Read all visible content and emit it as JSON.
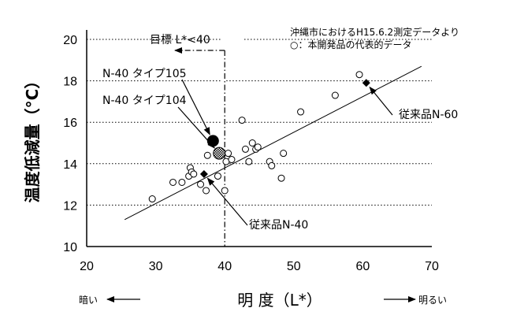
{
  "chart_data": {
    "type": "scatter",
    "ylabel": "温度低減量（°C）",
    "xlabel": "明 度（L*）",
    "x_left_hint": "暗い",
    "x_right_hint": "明るい",
    "source_note": "沖縄市におけるH15.6.2測定データより",
    "legend_note": "○：本開発品の代表的データ",
    "target_label": "目標 L*<40",
    "target_x": 40,
    "xlim": [
      20,
      70
    ],
    "ylim": [
      10,
      20
    ],
    "x_ticks": [
      20,
      30,
      40,
      50,
      60,
      70
    ],
    "y_ticks": [
      10,
      12,
      14,
      16,
      18,
      20
    ],
    "grid": "dotted horizontal at 12,14,16,18,20 (right part)",
    "trend_line": {
      "x": [
        25.5,
        68.5
      ],
      "y": [
        11.3,
        18.7
      ]
    },
    "series": [
      {
        "name": "本開発品の代表的データ",
        "marker": "open-circle",
        "points": [
          [
            29.5,
            12.3
          ],
          [
            32.5,
            13.1
          ],
          [
            33.8,
            13.1
          ],
          [
            34.8,
            13.4
          ],
          [
            35.0,
            13.8
          ],
          [
            35.2,
            13.6
          ],
          [
            35.5,
            13.5
          ],
          [
            36.5,
            13.0
          ],
          [
            37.3,
            12.7
          ],
          [
            37.5,
            14.4
          ],
          [
            39.0,
            13.4
          ],
          [
            40.0,
            12.7
          ],
          [
            40.2,
            14.1
          ],
          [
            40.5,
            14.5
          ],
          [
            41.0,
            14.2
          ],
          [
            42.5,
            16.1
          ],
          [
            43.0,
            14.7
          ],
          [
            43.5,
            14.1
          ],
          [
            44.0,
            15.0
          ],
          [
            44.5,
            14.7
          ],
          [
            44.8,
            14.8
          ],
          [
            46.5,
            14.1
          ],
          [
            46.8,
            13.9
          ],
          [
            48.2,
            13.3
          ],
          [
            48.5,
            14.5
          ],
          [
            51.0,
            16.5
          ],
          [
            56.0,
            17.3
          ],
          [
            59.5,
            18.3
          ]
        ]
      },
      {
        "name": "従来品N-40",
        "marker": "filled-diamond",
        "points": [
          [
            37.0,
            13.5
          ]
        ]
      },
      {
        "name": "従来品N-60",
        "marker": "filled-diamond",
        "points": [
          [
            60.5,
            17.9
          ]
        ]
      },
      {
        "name": "N-40 タイプ105",
        "marker": "large-filled-circle",
        "points": [
          [
            38.3,
            15.1
          ]
        ]
      },
      {
        "name": "N-40 タイプ104",
        "marker": "large-hatched-circle",
        "points": [
          [
            39.2,
            14.5
          ]
        ]
      }
    ],
    "annotations": [
      {
        "text": "N-40 タイプ105",
        "target_series": "N-40 タイプ105"
      },
      {
        "text": "N-40 タイプ104",
        "target_series": "N-40 タイプ104"
      },
      {
        "text": "従来品N-60",
        "target_series": "従来品N-60"
      },
      {
        "text": "従来品N-40",
        "target_series": "従来品N-40"
      }
    ]
  }
}
